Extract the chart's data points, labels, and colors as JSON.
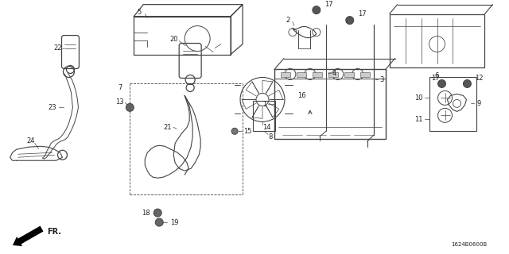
{
  "background": "#ffffff",
  "watermark": "1624B0600B",
  "fr_label": "FR.",
  "line_color": "#444444",
  "label_color": "#222222",
  "label_fs": 6.0,
  "lw_main": 0.9
}
